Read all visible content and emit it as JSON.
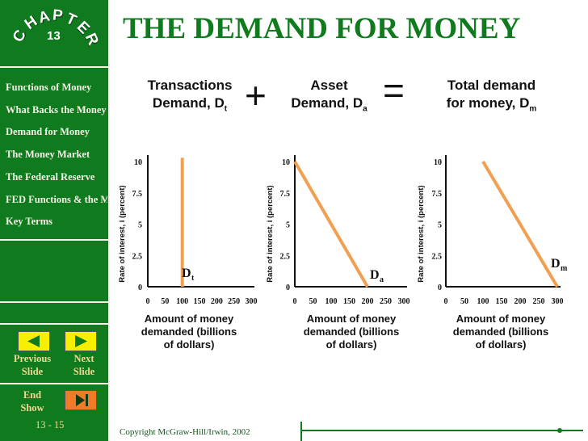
{
  "chapter": {
    "word": "CHAPTER",
    "number": "13"
  },
  "title": "THE DEMAND FOR MONEY",
  "sidebar": {
    "items": [
      "Functions of Money",
      "What Backs the Money Supply?",
      "Demand for Money",
      "The Money Market",
      "The Federal Reserve",
      "FED Functions & the Money Supply",
      "Key Terms"
    ],
    "previous_label": [
      "Previous",
      "Slide"
    ],
    "next_label": [
      "Next",
      "Slide"
    ],
    "end_label": [
      "End",
      "Show"
    ],
    "slide_number": "13 - 15"
  },
  "headers": {
    "transactions": {
      "line1": "Transactions",
      "line2": "Demand, D",
      "sub": "t"
    },
    "asset": {
      "line1": "Asset",
      "line2": "Demand, D",
      "sub": "a"
    },
    "total": {
      "line1": "Total demand",
      "line2": "for money, D",
      "sub": "m"
    },
    "plus": "+",
    "equals": "="
  },
  "copyright": "Copyright McGraw-Hill/Irwin,  2002",
  "colors": {
    "green": "#0f7a1e",
    "curve": "#f0a050",
    "button_yellow": "#f6f000",
    "button_orange": "#f07a28"
  },
  "chart_data": [
    {
      "type": "line",
      "xlabel": "Amount of money demanded (billions of dollars)",
      "ylabel": "Rate of interest, i (percent)",
      "xticks": [
        0,
        50,
        100,
        150,
        200,
        250,
        300
      ],
      "yticks": [
        0,
        2.5,
        5,
        7.5,
        10
      ],
      "xlim": [
        0,
        300
      ],
      "ylim": [
        0,
        10
      ],
      "curve_label": "D",
      "curve_sub": "t",
      "series": [
        {
          "x": [
            100,
            100
          ],
          "y": [
            0,
            10.3
          ]
        }
      ]
    },
    {
      "type": "line",
      "xlabel": "Amount of money demanded (billions of dollars)",
      "ylabel": "Rate of interest, i (percent)",
      "xticks": [
        0,
        50,
        100,
        150,
        200,
        250,
        300
      ],
      "yticks": [
        0,
        2.5,
        5,
        7.5,
        10
      ],
      "xlim": [
        0,
        300
      ],
      "ylim": [
        0,
        10
      ],
      "curve_label": "D",
      "curve_sub": "a",
      "series": [
        {
          "x": [
            0,
            200
          ],
          "y": [
            10,
            0
          ]
        }
      ]
    },
    {
      "type": "line",
      "xlabel": "Amount of money demanded (billions of dollars)",
      "ylabel": "Rate of interest, i (percent)",
      "xticks": [
        0,
        50,
        100,
        150,
        200,
        250,
        300
      ],
      "yticks": [
        0,
        2.5,
        5,
        7.5,
        10
      ],
      "xlim": [
        0,
        300
      ],
      "ylim": [
        0,
        10
      ],
      "curve_label": "D",
      "curve_sub": "m",
      "series": [
        {
          "x": [
            100,
            300
          ],
          "y": [
            10,
            0
          ]
        }
      ]
    }
  ]
}
